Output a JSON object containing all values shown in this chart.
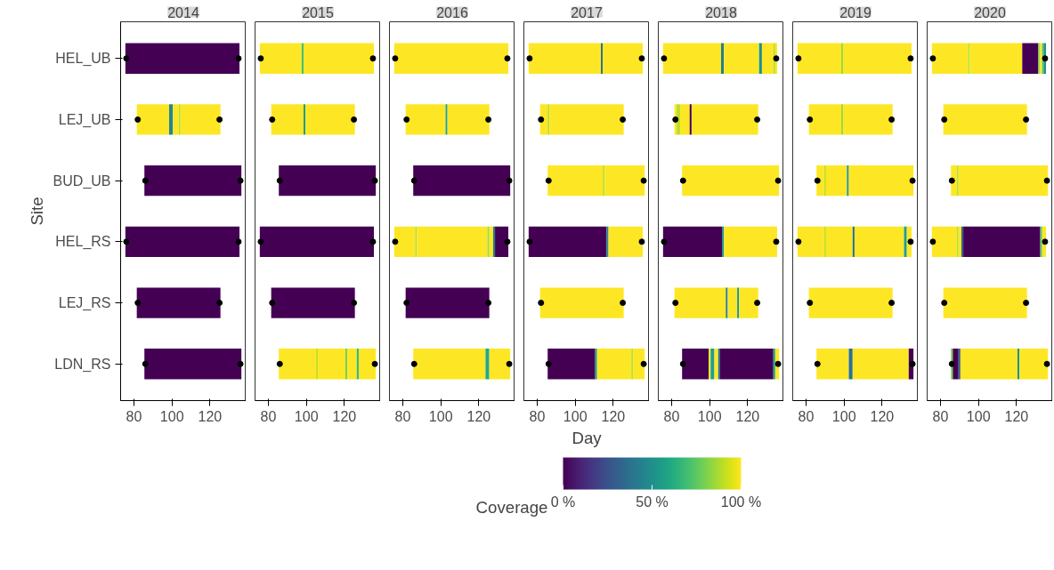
{
  "chart_data": [
    {
      "type": "bar",
      "orientation": "horizontal",
      "title": "2014",
      "ylabel": "Site",
      "categories": [
        "HEL_UB",
        "LEJ_UB",
        "BUD_UB",
        "HEL_RS",
        "LEJ_RS",
        "LDN_RS"
      ],
      "xlim": [
        73,
        139
      ],
      "xticks": [
        80,
        100,
        120
      ],
      "marker": "circle",
      "series": [
        {
          "base": [
            75.5,
            81.5,
            85.5,
            75.5,
            81.5,
            85.5
          ],
          "values": [
            60,
            17,
            51,
            60,
            44,
            51
          ],
          "colors": [
            "#440154",
            "#fde725",
            "#440154",
            "#440154",
            "#440154",
            "#440154"
          ]
        },
        {
          "base": [
            null,
            98.5,
            null,
            null,
            null,
            null
          ],
          "values": [
            null,
            2,
            null,
            null,
            null,
            null
          ],
          "colors": [
            null,
            "#25858e",
            null,
            null,
            null,
            null
          ]
        },
        {
          "base": [
            null,
            100.5,
            null,
            null,
            null,
            null
          ],
          "values": [
            null,
            3,
            null,
            null,
            null,
            null
          ],
          "colors": [
            null,
            "#fde725",
            null,
            null,
            null,
            null
          ]
        },
        {
          "base": [
            null,
            103.5,
            null,
            null,
            null,
            null
          ],
          "values": [
            null,
            1,
            null,
            null,
            null,
            null
          ],
          "colors": [
            null,
            "#bddf26",
            null,
            null,
            null,
            null
          ]
        },
        {
          "base": [
            null,
            104.5,
            null,
            null,
            null,
            null
          ],
          "values": [
            null,
            21,
            null,
            null,
            null,
            null
          ],
          "colors": [
            null,
            "#fde725",
            null,
            null,
            null,
            null
          ]
        },
        {
          "type": "scatter",
          "color": "#000000",
          "values": [
            76,
            82,
            86,
            76,
            82,
            86
          ]
        },
        {
          "type": "scatter",
          "color": "#000000",
          "values": [
            135,
            125,
            136,
            135,
            125,
            136
          ]
        }
      ]
    },
    {
      "type": "bar",
      "orientation": "horizontal",
      "title": "2015",
      "categories": [
        null,
        null,
        null,
        null,
        null,
        null
      ],
      "xlim": [
        73,
        139
      ],
      "xticks": [
        80,
        100,
        120
      ],
      "tick_labels": "x",
      "marker": "circle",
      "series": [
        {
          "base": [
            75.5,
            81.5,
            85.5,
            75.5,
            81.5,
            85.5
          ],
          "values": [
            22,
            17,
            51,
            60,
            44,
            19.5
          ],
          "colors": [
            "#fde725",
            "#fde725",
            "#440154",
            "#440154",
            "#440154",
            "#fde725"
          ]
        },
        {
          "base": [
            97.5,
            98.5,
            null,
            null,
            null,
            105
          ],
          "values": [
            1,
            1,
            null,
            null,
            null,
            1
          ],
          "colors": [
            "#44bf70",
            "#1fa088",
            null,
            null,
            null,
            "#c8e020"
          ]
        },
        {
          "base": [
            98.5,
            99.5,
            null,
            null,
            null,
            106
          ],
          "values": [
            37,
            26,
            null,
            null,
            null,
            14.5
          ],
          "colors": [
            "#fde725",
            "#fde725",
            null,
            null,
            null,
            "#fde725"
          ]
        },
        {
          "base": [
            null,
            null,
            null,
            null,
            null,
            120.5
          ],
          "values": [
            null,
            null,
            null,
            null,
            null,
            1
          ],
          "colors": [
            null,
            null,
            null,
            null,
            null,
            "#7ad151"
          ]
        },
        {
          "base": [
            null,
            null,
            null,
            null,
            null,
            121.5
          ],
          "values": [
            null,
            null,
            null,
            null,
            null,
            5
          ],
          "colors": [
            null,
            null,
            null,
            null,
            null,
            "#fde725"
          ]
        },
        {
          "base": [
            null,
            null,
            null,
            null,
            null,
            126.5
          ],
          "values": [
            null,
            null,
            null,
            null,
            null,
            1
          ],
          "colors": [
            null,
            null,
            null,
            null,
            null,
            "#2fb47c"
          ]
        },
        {
          "base": [
            null,
            null,
            null,
            null,
            null,
            127.5
          ],
          "values": [
            null,
            null,
            null,
            null,
            null,
            9
          ],
          "colors": [
            null,
            null,
            null,
            null,
            null,
            "#fde725"
          ]
        },
        {
          "type": "scatter",
          "color": "#000000",
          "values": [
            76,
            82,
            86,
            76,
            82,
            86
          ]
        },
        {
          "type": "scatter",
          "color": "#000000",
          "values": [
            135,
            125,
            136,
            135,
            125,
            136
          ]
        }
      ]
    },
    {
      "type": "bar",
      "orientation": "horizontal",
      "title": "2016",
      "categories": [
        null,
        null,
        null,
        null,
        null,
        null
      ],
      "xlim": [
        73,
        139
      ],
      "xticks": [
        80,
        100,
        120
      ],
      "tick_labels": "x",
      "marker": "circle",
      "series": [
        {
          "base": [
            75.5,
            81.5,
            85.5,
            75.5,
            81.5,
            85.5
          ],
          "values": [
            60,
            21,
            51,
            11,
            44,
            38
          ],
          "colors": [
            "#fde725",
            "#fde725",
            "#440154",
            "#fde725",
            "#440154",
            "#fde725"
          ]
        },
        {
          "base": [
            null,
            102.5,
            null,
            86.5,
            null,
            123.5
          ],
          "values": [
            null,
            1,
            null,
            1,
            null,
            2
          ],
          "colors": [
            null,
            "#1fa088",
            null,
            "#bddf26",
            null,
            "#22a884"
          ]
        },
        {
          "base": [
            null,
            103.5,
            null,
            87.5,
            null,
            125.5
          ],
          "values": [
            null,
            22,
            null,
            37,
            null,
            11
          ],
          "colors": [
            null,
            "#fde725",
            null,
            "#fde725",
            null,
            "#fde725"
          ]
        },
        {
          "base": [
            null,
            null,
            null,
            124.5,
            null,
            null
          ],
          "values": [
            null,
            null,
            null,
            1,
            null,
            null
          ],
          "colors": [
            null,
            null,
            null,
            "#a0da39",
            null,
            null
          ]
        },
        {
          "base": [
            null,
            null,
            null,
            125.5,
            null,
            null
          ],
          "values": [
            null,
            null,
            null,
            2,
            null,
            null
          ],
          "colors": [
            null,
            null,
            null,
            "#fde725",
            null,
            null
          ]
        },
        {
          "base": [
            null,
            null,
            null,
            127.5,
            null,
            null
          ],
          "values": [
            null,
            null,
            null,
            1,
            null,
            null
          ],
          "colors": [
            null,
            null,
            null,
            "#287d8e",
            null,
            null
          ]
        },
        {
          "base": [
            null,
            null,
            null,
            128.5,
            null,
            null
          ],
          "values": [
            null,
            null,
            null,
            7,
            null,
            null
          ],
          "colors": [
            null,
            null,
            null,
            "#440154",
            null,
            null
          ]
        },
        {
          "type": "scatter",
          "color": "#000000",
          "values": [
            76,
            82,
            86,
            76,
            82,
            86
          ]
        },
        {
          "type": "scatter",
          "color": "#000000",
          "values": [
            135,
            125,
            136,
            135,
            125,
            136
          ]
        }
      ]
    },
    {
      "type": "bar",
      "orientation": "horizontal",
      "title": "2017",
      "xlabel": "Day",
      "clabel": "Coverage",
      "categories": [
        null,
        null,
        null,
        null,
        null,
        null
      ],
      "xlim": [
        73,
        139
      ],
      "xticks": [
        80,
        100,
        120
      ],
      "clim": [
        0,
        100
      ],
      "cticks": [
        {
          "value": 0,
          "label": "0 %"
        },
        {
          "value": 50,
          "label": "50 %"
        },
        {
          "value": 100,
          "label": "100 %"
        }
      ],
      "tick_labels": "x",
      "marker": "circle",
      "series": [
        {
          "base": [
            75.5,
            81.5,
            85.5,
            75.5,
            81.5,
            85.5
          ],
          "values": [
            38,
            4,
            29,
            41,
            44,
            25
          ],
          "colors": [
            "#fde725",
            "#fde725",
            "#fde725",
            "#440154",
            "#fde725",
            "#440154"
          ]
        },
        {
          "base": [
            113.5,
            85.5,
            114.5,
            116.5,
            null,
            110.5
          ],
          "values": [
            1,
            1,
            1,
            1,
            null,
            1
          ],
          "colors": [
            "#2d708e",
            "#bddf26",
            "#bddf26",
            "#25858e",
            null,
            "#1fa088"
          ]
        },
        {
          "base": [
            114.5,
            86.5,
            115.5,
            117.5,
            null,
            111.5
          ],
          "values": [
            21,
            39,
            21,
            18,
            null,
            18
          ],
          "colors": [
            "#fde725",
            "#fde725",
            "#fde725",
            "#fde725",
            null,
            "#fde725"
          ]
        },
        {
          "base": [
            null,
            null,
            null,
            null,
            null,
            129.5
          ],
          "values": [
            null,
            null,
            null,
            null,
            null,
            1
          ],
          "colors": [
            null,
            null,
            null,
            null,
            null,
            "#bddf26"
          ]
        },
        {
          "base": [
            null,
            null,
            null,
            null,
            null,
            130.5
          ],
          "values": [
            null,
            null,
            null,
            null,
            null,
            6
          ],
          "colors": [
            null,
            null,
            null,
            null,
            null,
            "#fde725"
          ]
        },
        {
          "type": "scatter",
          "color": "#000000",
          "values": [
            76,
            82,
            86,
            76,
            82,
            86
          ]
        },
        {
          "type": "scatter",
          "color": "#000000",
          "values": [
            135,
            125,
            136,
            135,
            125,
            136
          ]
        }
      ]
    },
    {
      "type": "bar",
      "orientation": "horizontal",
      "title": "2018",
      "categories": [
        null,
        null,
        null,
        null,
        null,
        null
      ],
      "xlim": [
        73,
        139
      ],
      "xticks": [
        80,
        100,
        120
      ],
      "tick_labels": "x",
      "marker": "circle",
      "series": [
        {
          "base": [
            75.5,
            81.5,
            85.5,
            75.5,
            81.5,
            85.5
          ],
          "values": [
            30.5,
            1,
            51,
            31,
            27,
            14
          ],
          "colors": [
            "#fde725",
            "#fde725",
            "#fde725",
            "#440154",
            "#fde725",
            "#440154"
          ]
        },
        {
          "base": [
            106,
            82.5,
            null,
            106.5,
            108.5,
            99.5
          ],
          "values": [
            1.5,
            2,
            null,
            1,
            1,
            1
          ],
          "colors": [
            "#287d8e",
            "#bddf26",
            null,
            "#21918c",
            "#287d8e",
            "#fde725"
          ]
        },
        {
          "base": [
            107.5,
            84.5,
            null,
            107.5,
            109.5,
            100.5
          ],
          "values": [
            18.5,
            5,
            null,
            28,
            5,
            2
          ],
          "colors": [
            "#fde725",
            "#fde725",
            null,
            "#fde725",
            "#fde725",
            "#1fa088"
          ]
        },
        {
          "base": [
            126,
            89.5,
            null,
            null,
            114.5,
            102.5
          ],
          "values": [
            1.5,
            1,
            null,
            null,
            1,
            2
          ],
          "colors": [
            "#21918c",
            "#440154",
            null,
            null,
            "#21918c",
            "#fde725"
          ]
        },
        {
          "base": [
            127.5,
            90.5,
            null,
            null,
            115.5,
            104.5
          ],
          "values": [
            6,
            35,
            null,
            null,
            10,
            1
          ],
          "colors": [
            "#fde725",
            "#fde725",
            null,
            null,
            "#fde725",
            "#2d708e"
          ]
        },
        {
          "base": [
            133.5,
            null,
            null,
            null,
            null,
            105.5
          ],
          "values": [
            1,
            null,
            null,
            null,
            null,
            28
          ],
          "colors": [
            "#bddf26",
            null,
            null,
            null,
            null,
            "#440154"
          ]
        },
        {
          "base": [
            134.5,
            null,
            null,
            null,
            null,
            133.5
          ],
          "values": [
            1,
            null,
            null,
            null,
            null,
            1
          ],
          "colors": [
            "#fde725",
            null,
            null,
            null,
            null,
            "#22a884"
          ]
        },
        {
          "base": [
            null,
            null,
            null,
            null,
            null,
            134.5
          ],
          "values": [
            null,
            null,
            null,
            null,
            null,
            2
          ],
          "colors": [
            null,
            null,
            null,
            null,
            null,
            "#fde725"
          ]
        },
        {
          "type": "scatter",
          "color": "#000000",
          "values": [
            76,
            82,
            86,
            76,
            82,
            86
          ]
        },
        {
          "type": "scatter",
          "color": "#000000",
          "values": [
            135,
            125,
            136,
            135,
            125,
            136
          ]
        }
      ]
    },
    {
      "type": "bar",
      "orientation": "horizontal",
      "title": "2019",
      "categories": [
        null,
        null,
        null,
        null,
        null,
        null
      ],
      "xlim": [
        73,
        139
      ],
      "xticks": [
        80,
        100,
        120
      ],
      "tick_labels": "x",
      "marker": "circle",
      "series": [
        {
          "base": [
            75.5,
            81.5,
            85.5,
            75.5,
            81.5,
            85.5
          ],
          "values": [
            23,
            17,
            4,
            14,
            44,
            17
          ],
          "colors": [
            "#fde725",
            "#fde725",
            "#fde725",
            "#fde725",
            "#fde725",
            "#fde725"
          ]
        },
        {
          "base": [
            98.5,
            98.5,
            89.5,
            89.5,
            null,
            102.5
          ],
          "values": [
            1,
            1,
            1,
            1,
            null,
            2
          ],
          "colors": [
            "#a0da39",
            "#a0da39",
            "#c8e020",
            "#c8e020",
            null,
            "#2d708e"
          ]
        },
        {
          "base": [
            99.5,
            99.5,
            90.5,
            90.5,
            null,
            104.5
          ],
          "values": [
            36,
            26,
            11,
            14,
            null,
            29.5
          ],
          "colors": [
            "#fde725",
            "#fde725",
            "#fde725",
            "#fde725",
            null,
            "#fde725"
          ]
        },
        {
          "base": [
            null,
            null,
            101.5,
            104.5,
            null,
            134
          ],
          "values": [
            null,
            null,
            1,
            1,
            null,
            2.5
          ],
          "colors": [
            null,
            null,
            "#21918c",
            "#2d708e",
            null,
            "#440154"
          ]
        },
        {
          "base": [
            null,
            null,
            102.5,
            105.5,
            null,
            null
          ],
          "values": [
            null,
            null,
            34,
            26,
            null,
            null
          ],
          "colors": [
            null,
            null,
            "#fde725",
            "#fde725",
            null,
            null
          ]
        },
        {
          "base": [
            null,
            null,
            null,
            131.5,
            null,
            null
          ],
          "values": [
            null,
            null,
            null,
            1.5,
            null,
            null
          ],
          "colors": [
            null,
            null,
            null,
            "#1fa088",
            null,
            null
          ]
        },
        {
          "base": [
            null,
            null,
            null,
            133,
            null,
            null
          ],
          "values": [
            null,
            null,
            null,
            2.5,
            null,
            null
          ],
          "colors": [
            null,
            null,
            null,
            "#fde725",
            null,
            null
          ]
        },
        {
          "type": "scatter",
          "color": "#000000",
          "values": [
            76,
            82,
            86,
            76,
            82,
            86
          ]
        },
        {
          "type": "scatter",
          "color": "#000000",
          "values": [
            135,
            125,
            136,
            135,
            125,
            136
          ]
        }
      ]
    },
    {
      "type": "bar",
      "orientation": "horizontal",
      "title": "2020",
      "categories": [
        null,
        null,
        null,
        null,
        null,
        null
      ],
      "xlim": [
        73,
        139
      ],
      "xticks": [
        80,
        100,
        120
      ],
      "tick_labels": "x",
      "marker": "circle",
      "series": [
        {
          "base": [
            75.5,
            81.5,
            85.5,
            75.5,
            81.5,
            85.5
          ],
          "values": [
            19,
            44,
            3,
            13,
            44,
            1
          ],
          "colors": [
            "#fde725",
            "#fde725",
            "#fde725",
            "#fde725",
            "#fde725",
            "#7ad151"
          ]
        },
        {
          "base": [
            94.5,
            null,
            88.5,
            88.5,
            null,
            86.5
          ],
          "values": [
            1,
            null,
            1,
            1,
            null,
            3
          ],
          "colors": [
            "#bddf26",
            null,
            "#bddf26",
            "#bddf26",
            null,
            "#440154"
          ]
        },
        {
          "base": [
            95.5,
            null,
            89.5,
            89.5,
            null,
            89.5
          ],
          "values": [
            27.5,
            null,
            47,
            1.5,
            null,
            1
          ],
          "colors": [
            "#fde725",
            null,
            "#fde725",
            "#fde725",
            null,
            "#33638d"
          ]
        },
        {
          "base": [
            123,
            null,
            null,
            91,
            null,
            90.5
          ],
          "values": [
            8.5,
            null,
            null,
            1,
            null,
            30
          ],
          "colors": [
            "#440154",
            null,
            null,
            "#33638d",
            null,
            "#fde725"
          ]
        },
        {
          "base": [
            131.5,
            null,
            null,
            92,
            null,
            120.5
          ],
          "values": [
            1,
            null,
            null,
            40.5,
            null,
            1
          ],
          "colors": [
            "#a0da39",
            null,
            null,
            "#440154",
            null,
            "#21918c"
          ]
        },
        {
          "base": [
            132.5,
            null,
            null,
            132.5,
            null,
            121.5
          ],
          "values": [
            1,
            null,
            null,
            1,
            null,
            15
          ],
          "colors": [
            "#fde725",
            null,
            null,
            "#5ec962",
            null,
            "#fde725"
          ]
        },
        {
          "base": [
            133.5,
            null,
            null,
            133.5,
            null,
            null
          ],
          "values": [
            1,
            null,
            null,
            2,
            null,
            null
          ],
          "colors": [
            "#44bf70",
            null,
            null,
            "#fde725",
            null,
            null
          ]
        },
        {
          "base": [
            134.5,
            null,
            null,
            null,
            null,
            null
          ],
          "values": [
            1,
            null,
            null,
            null,
            null,
            null
          ],
          "colors": [
            "#21918c",
            null,
            null,
            null,
            null,
            null
          ]
        },
        {
          "type": "scatter",
          "color": "#000000",
          "values": [
            76,
            82,
            86,
            76,
            82,
            86
          ]
        },
        {
          "type": "scatter",
          "color": "#000000",
          "values": [
            135,
            125,
            136,
            135,
            125,
            136
          ]
        }
      ]
    }
  ]
}
